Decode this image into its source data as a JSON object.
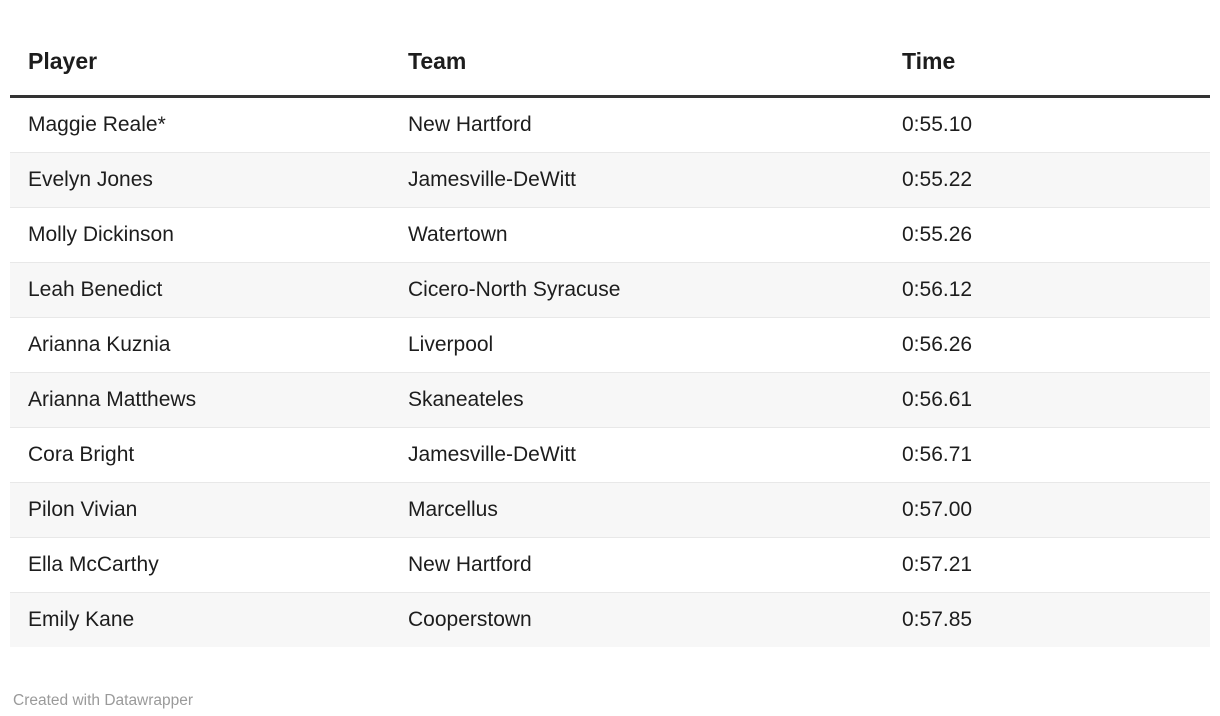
{
  "chart_data": {
    "type": "table",
    "columns": [
      "Player",
      "Team",
      "Time"
    ],
    "rows": [
      [
        "Maggie Reale*",
        "New Hartford",
        "0:55.10"
      ],
      [
        "Evelyn Jones",
        "Jamesville-DeWitt",
        "0:55.22"
      ],
      [
        "Molly Dickinson",
        "Watertown",
        "0:55.26"
      ],
      [
        "Leah Benedict",
        "Cicero-North Syracuse",
        "0:56.12"
      ],
      [
        "Arianna Kuznia",
        "Liverpool",
        "0:56.26"
      ],
      [
        "Arianna Matthews",
        "Skaneateles",
        "0:56.61"
      ],
      [
        "Cora Bright",
        "Jamesville-DeWitt",
        "0:56.71"
      ],
      [
        "Pilon Vivian",
        "Marcellus",
        "0:57.00"
      ],
      [
        "Ella McCarthy",
        "New Hartford",
        "0:57.21"
      ],
      [
        "Emily Kane",
        "Cooperstown",
        "0:57.85"
      ]
    ],
    "layout": {
      "stripes": "even-rows",
      "legend": "none",
      "grid": "row-separators"
    }
  },
  "footer": {
    "attribution": "Created with Datawrapper"
  },
  "colors": {
    "header_rule": "#333333",
    "stripe": "#f7f7f7",
    "row_border": "#e8e8e8",
    "text": "#1d1d1d",
    "footer_text": "#9a9a9a",
    "background": "#ffffff"
  }
}
